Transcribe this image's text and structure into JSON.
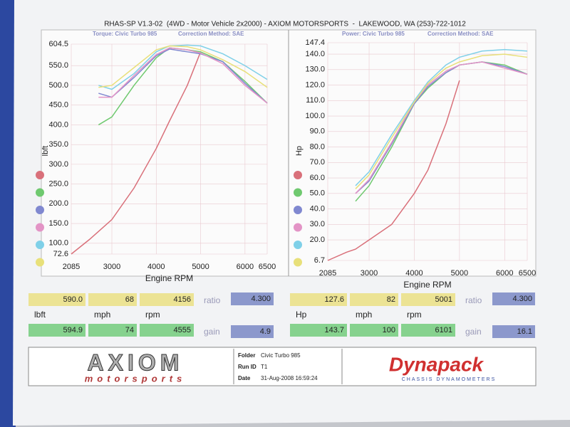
{
  "header": {
    "title": "RHAS-SP V1.3-02  (4WD - Motor Vehicle 2x2000) - AXIOM MOTORSPORTS  -  LAKEWOOD, WA (253)-722-1012"
  },
  "chart_data": [
    {
      "type": "line",
      "subtitle": "Torque: Civic Turbo 985",
      "note": "Correction Method: SAE",
      "x_label": "Engine RPM",
      "y_label": "lbft",
      "grid": true,
      "x": [
        2085,
        2500,
        2700,
        3000,
        3500,
        4000,
        4300,
        4700,
        5000,
        5500,
        6000,
        6500
      ],
      "xlim": [
        2085,
        6500
      ],
      "xticks": [
        2085,
        3000,
        4000,
        5000,
        6000,
        6500
      ],
      "ylim": [
        72.6,
        604.5
      ],
      "yticks": [
        72.6,
        {
          "value": 100,
          "label": "100.0"
        },
        {
          "value": 150,
          "label": "150.0"
        },
        {
          "value": 200,
          "label": "200.0"
        },
        {
          "value": 250,
          "label": "250.0"
        },
        {
          "value": 300,
          "label": "300.0"
        },
        {
          "value": 350,
          "label": "350.0"
        },
        {
          "value": 400,
          "label": "400.0"
        },
        {
          "value": 450,
          "label": "450.0"
        },
        {
          "value": 500,
          "label": "500.0"
        },
        {
          "value": 550,
          "label": "550.0"
        },
        604.5
      ],
      "series": [
        {
          "color": "#d9707a",
          "values": [
            72.6,
            110,
            130,
            160,
            240,
            340,
            410,
            500,
            585,
            null,
            null,
            null
          ]
        },
        {
          "color": "#6fc96f",
          "values": [
            null,
            null,
            400,
            420,
            500,
            570,
            595,
            590,
            585,
            560,
            510,
            455
          ]
        },
        {
          "color": "#8088d0",
          "values": [
            null,
            null,
            480,
            470,
            520,
            575,
            592,
            585,
            580,
            560,
            505,
            455
          ]
        },
        {
          "color": "#e394c6",
          "values": [
            null,
            null,
            470,
            470,
            525,
            578,
            595,
            590,
            582,
            555,
            500,
            455
          ]
        },
        {
          "color": "#7fd0e8",
          "values": [
            null,
            null,
            500,
            490,
            530,
            585,
            600,
            602,
            600,
            580,
            550,
            515
          ]
        },
        {
          "color": "#e8e07a",
          "values": [
            null,
            null,
            495,
            500,
            545,
            590,
            600,
            598,
            590,
            565,
            535,
            495
          ]
        }
      ]
    },
    {
      "type": "line",
      "subtitle": "Power: Civic Turbo 985",
      "note": "Correction Method: SAE",
      "x_label": "Engine RPM",
      "y_label": "Hp",
      "grid": true,
      "x": [
        2085,
        2500,
        2700,
        3000,
        3500,
        4000,
        4300,
        4700,
        5000,
        5500,
        6000,
        6500
      ],
      "xlim": [
        2085,
        6500
      ],
      "xticks": [
        2085,
        3000,
        4000,
        5000,
        6000,
        6500
      ],
      "ylim": [
        6.7,
        147.4
      ],
      "yticks": [
        6.7,
        {
          "value": 20,
          "label": "20.0"
        },
        {
          "value": 30,
          "label": "30.0"
        },
        {
          "value": 40,
          "label": "40.0"
        },
        {
          "value": 50,
          "label": "50.0"
        },
        {
          "value": 60,
          "label": "60.0"
        },
        {
          "value": 70,
          "label": "70.0"
        },
        {
          "value": 80,
          "label": "80.0"
        },
        {
          "value": 90,
          "label": "90.0"
        },
        {
          "value": 100,
          "label": "100.0"
        },
        {
          "value": 110,
          "label": "110.0"
        },
        {
          "value": 120,
          "label": "120.0"
        },
        {
          "value": 130,
          "label": "130.0"
        },
        {
          "value": 140,
          "label": "140.0"
        },
        147.4
      ],
      "series": [
        {
          "color": "#d9707a",
          "values": [
            6.7,
            12,
            14,
            20,
            30,
            50,
            65,
            95,
            123,
            null,
            null,
            null
          ]
        },
        {
          "color": "#6fc96f",
          "values": [
            null,
            null,
            45,
            55,
            80,
            108,
            118,
            128,
            133,
            135,
            133,
            127
          ]
        },
        {
          "color": "#8088d0",
          "values": [
            null,
            null,
            50,
            58,
            82,
            108,
            119,
            128,
            133,
            135,
            132,
            127
          ]
        },
        {
          "color": "#e394c6",
          "values": [
            null,
            null,
            50,
            59,
            83,
            109,
            120,
            129,
            133,
            135,
            131,
            127
          ]
        },
        {
          "color": "#7fd0e8",
          "values": [
            null,
            null,
            55,
            64,
            88,
            110,
            122,
            133,
            138,
            142,
            143,
            142
          ]
        },
        {
          "color": "#e8e07a",
          "values": [
            null,
            null,
            53,
            62,
            86,
            109,
            121,
            131,
            135,
            139,
            140,
            138
          ]
        }
      ]
    }
  ],
  "readouts": [
    {
      "top": [
        "590.0",
        "68",
        "4156"
      ],
      "top_tag": "ratio",
      "top_box": "4.300",
      "units": [
        "lbft",
        "mph",
        "rpm"
      ],
      "bottom": [
        "594.9",
        "74",
        "4555"
      ],
      "bottom_tag": "gain",
      "bottom_box": "4.9"
    },
    {
      "top": [
        "127.6",
        "82",
        "5001"
      ],
      "top_tag": "ratio",
      "top_box": "4.300",
      "units": [
        "Hp",
        "mph",
        "rpm"
      ],
      "bottom": [
        "143.7",
        "100",
        "6101"
      ],
      "bottom_tag": "gain",
      "bottom_box": "16.1"
    }
  ],
  "footer": {
    "logo": "AXIOM",
    "logo_sub": "motorsports",
    "fields": [
      {
        "label": "Folder",
        "value": "Civic Turbo 985"
      },
      {
        "label": "Run ID",
        "value": "T1"
      },
      {
        "label": "Date",
        "value": "31-Aug-2008   16:59:24"
      }
    ],
    "brand": "Dynapack",
    "brand_sub": "CHASSIS DYNAMOMETERS"
  }
}
